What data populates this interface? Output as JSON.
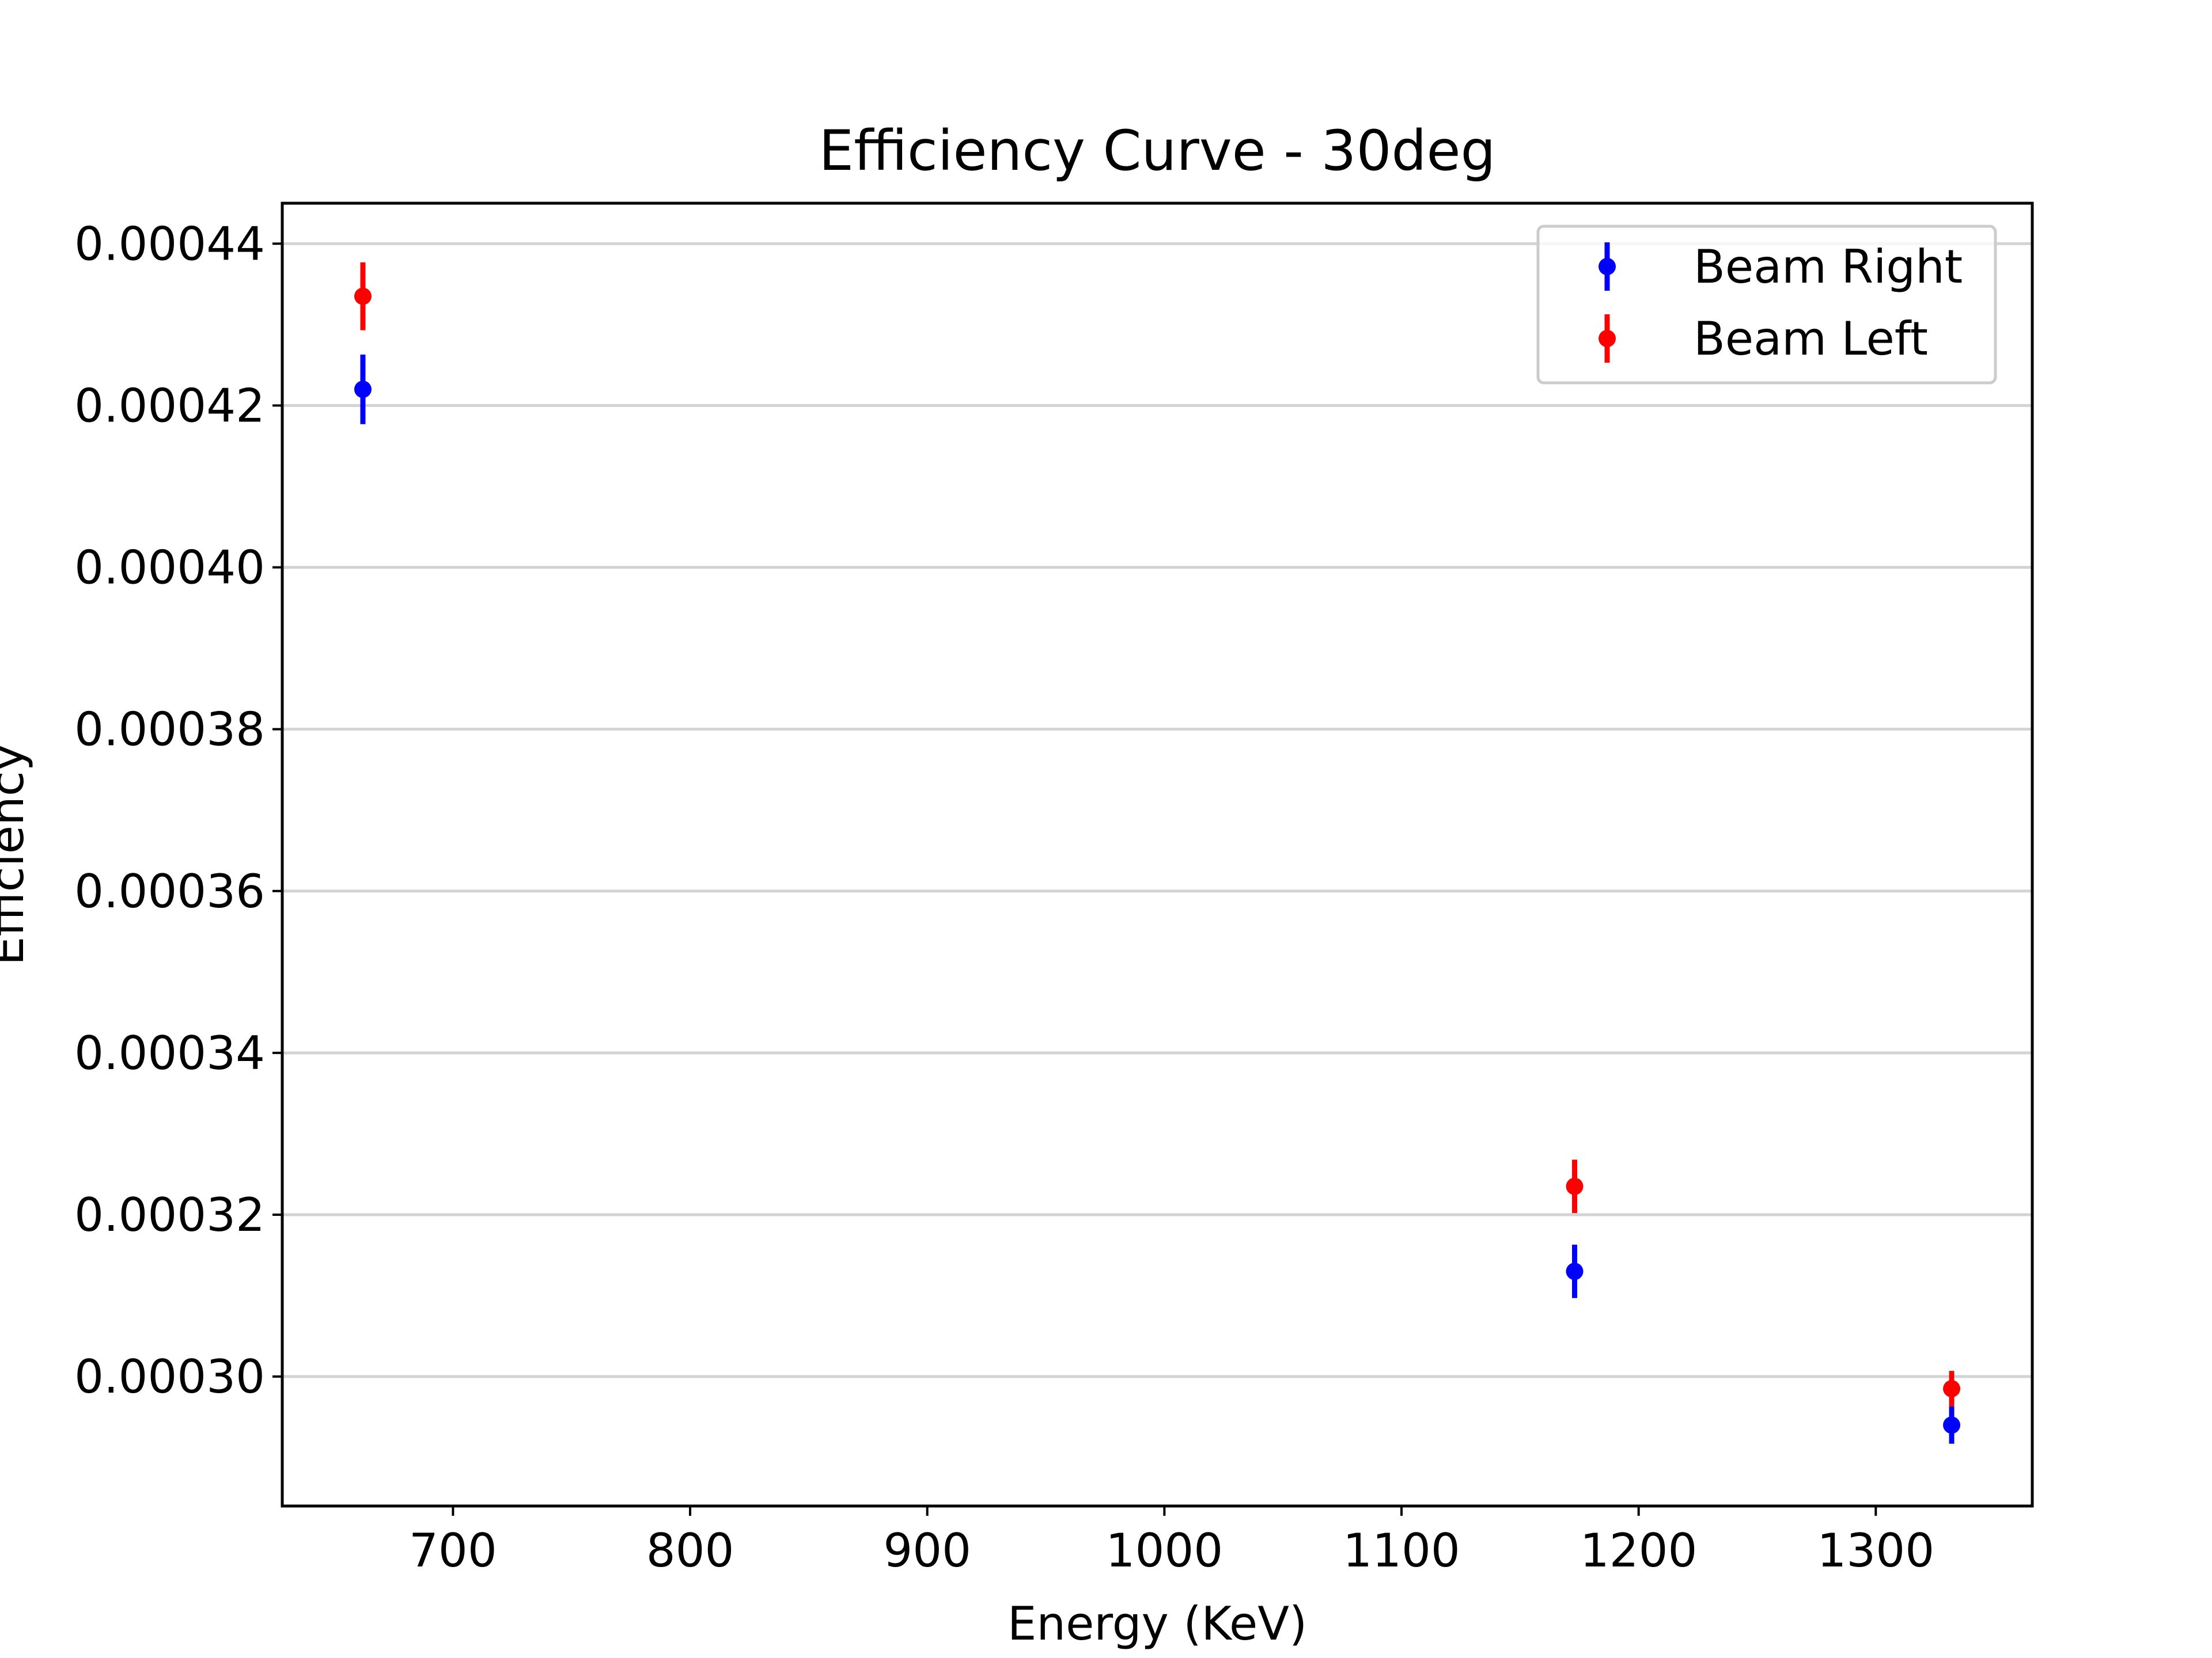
{
  "chart_data": {
    "type": "scatter",
    "title": "Efficiency Curve - 30deg",
    "xlabel": "Energy (KeV)",
    "ylabel": "Efficiency",
    "xlim": [
      628,
      1366
    ],
    "ylim": [
      0.000284,
      0.000445
    ],
    "xticks": [
      700,
      800,
      900,
      1000,
      1100,
      1200,
      1300
    ],
    "xtick_labels": [
      "700",
      "800",
      "900",
      "1000",
      "1100",
      "1200",
      "1300"
    ],
    "yticks": [
      0.0003,
      0.00032,
      0.00034,
      0.00036,
      0.00038,
      0.0004,
      0.00042,
      0.00044
    ],
    "ytick_labels": [
      "0.00030",
      "0.00032",
      "0.00034",
      "0.00036",
      "0.00038",
      "0.00040",
      "0.00042",
      "0.00044"
    ],
    "grid": "horizontal",
    "legend_position": "top-right",
    "series": [
      {
        "name": "Beam Right",
        "color": "#0000ff",
        "x": [
          662,
          1173,
          1332
        ],
        "y": [
          0.000422,
          0.000313,
          0.000294
        ],
        "yerr": [
          4.3e-06,
          3.3e-06,
          2.3e-06
        ]
      },
      {
        "name": "Beam Left",
        "color": "#ff0000",
        "x": [
          662,
          1173,
          1332
        ],
        "y": [
          0.0004335,
          0.0003235,
          0.0002985
        ],
        "yerr": [
          4.2e-06,
          3.3e-06,
          2.2e-06
        ]
      }
    ]
  }
}
